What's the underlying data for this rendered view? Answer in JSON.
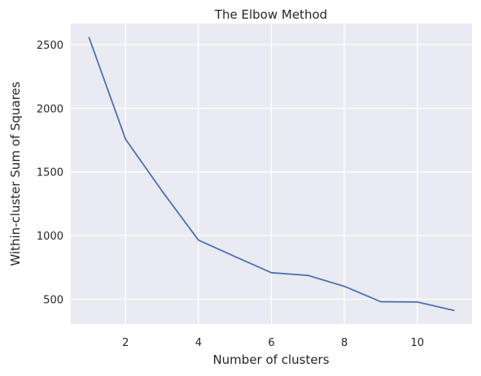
{
  "chart_data": {
    "type": "line",
    "title": "The Elbow Method",
    "xlabel": "Number of clusters",
    "ylabel": "Within-cluster Sum of Squares",
    "x": [
      1,
      2,
      3,
      4,
      5,
      6,
      7,
      8,
      9,
      10,
      11
    ],
    "series": [
      {
        "values": [
          2555,
          1757,
          1350,
          964,
          835,
          708,
          687,
          601,
          480,
          478,
          412
        ]
      }
    ],
    "xlim": [
      0.5,
      11.5
    ],
    "ylim": [
      305,
      2665
    ],
    "xticks": [
      2,
      4,
      6,
      8,
      10
    ],
    "yticks": [
      500,
      1000,
      1500,
      2000,
      2500
    ],
    "grid": true,
    "colors": {
      "background": "#eaeaf2",
      "grid": "#ffffff",
      "line": "#4c72b0",
      "text": "#262626"
    }
  }
}
